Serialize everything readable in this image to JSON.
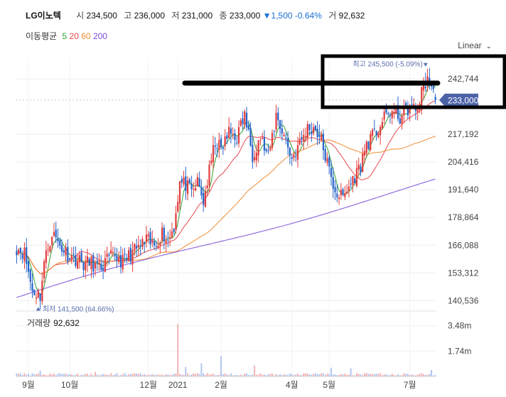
{
  "header": {
    "name": "LG이노텍",
    "open_label": "시",
    "open": "234,500",
    "high_label": "고",
    "high": "236,000",
    "low_label": "저",
    "low": "231,000",
    "close_label": "종",
    "close": "233,000",
    "change": "▼1,500 -0.64%",
    "volume_label": "거",
    "volume": "92,632"
  },
  "ma_legend": {
    "title": "이동평균",
    "periods": [
      {
        "label": "5",
        "color": "#2ca02c"
      },
      {
        "label": "20",
        "color": "#e8464a"
      },
      {
        "label": "60",
        "color": "#f08c32"
      },
      {
        "label": "200",
        "color": "#7b4fd9"
      }
    ]
  },
  "scale_selector": {
    "label": "Linear"
  },
  "price_badge": "233,000",
  "annotations": {
    "max_label": "최고 245,500 (-5.09%)",
    "min_label": "최저 141,500 (64.66%)"
  },
  "volume_panel": {
    "title": "거래량",
    "value": "92,632"
  },
  "colors": {
    "up": "#e23b3b",
    "down": "#2563c8",
    "badge": "#4c63a8",
    "annotation": "#5a6fae"
  },
  "chart_data": {
    "type": "candlestick",
    "price_ticks": [
      "242,744",
      "217,192",
      "204,416",
      "191,640",
      "178,864",
      "166,088",
      "153,312",
      "140,536"
    ],
    "price_tick_values": [
      242744,
      217192,
      204416,
      191640,
      178864,
      166088,
      153312,
      140536
    ],
    "volume_ticks": [
      "3.48m",
      "1.74m"
    ],
    "volume_tick_values": [
      3480000,
      1740000
    ],
    "x_ticks": [
      "9월",
      "10월",
      "12월",
      "2021",
      "2월",
      "4월",
      "5월",
      "7월"
    ],
    "x_tick_positions": [
      6,
      27,
      67,
      82,
      104,
      140,
      159,
      200
    ],
    "n_sessions": 214,
    "ylim": [
      139000,
      249000
    ],
    "volume_max": 4100000,
    "anchors": [
      [
        0,
        165000
      ],
      [
        4,
        162500
      ],
      [
        8,
        145000
      ],
      [
        12,
        143000
      ],
      [
        14,
        158000
      ],
      [
        18,
        172000
      ],
      [
        22,
        166000
      ],
      [
        26,
        162000
      ],
      [
        30,
        160000
      ],
      [
        34,
        157500
      ],
      [
        38,
        158000
      ],
      [
        42,
        155000
      ],
      [
        46,
        159000
      ],
      [
        50,
        161500
      ],
      [
        54,
        158500
      ],
      [
        58,
        162000
      ],
      [
        62,
        165000
      ],
      [
        66,
        168000
      ],
      [
        70,
        166000
      ],
      [
        74,
        172000
      ],
      [
        77,
        168000
      ],
      [
        80,
        175000
      ],
      [
        83,
        195000
      ],
      [
        86,
        194000
      ],
      [
        89,
        190000
      ],
      [
        92,
        195000
      ],
      [
        95,
        186000
      ],
      [
        98,
        200000
      ],
      [
        101,
        214000
      ],
      [
        104,
        210000
      ],
      [
        108,
        218000
      ],
      [
        112,
        216000
      ],
      [
        116,
        226000
      ],
      [
        120,
        208000
      ],
      [
        124,
        216000
      ],
      [
        128,
        206000
      ],
      [
        132,
        226000
      ],
      [
        136,
        217000
      ],
      [
        140,
        206000
      ],
      [
        144,
        213000
      ],
      [
        148,
        220000
      ],
      [
        152,
        220000
      ],
      [
        155,
        214000
      ],
      [
        158,
        204000
      ],
      [
        160,
        196000
      ],
      [
        163,
        190000
      ],
      [
        166,
        188000
      ],
      [
        169,
        193000
      ],
      [
        172,
        198000
      ],
      [
        175,
        203000
      ],
      [
        178,
        213000
      ],
      [
        182,
        217000
      ],
      [
        186,
        223000
      ],
      [
        190,
        228000
      ],
      [
        195,
        225000
      ],
      [
        200,
        230000
      ],
      [
        203,
        228000
      ],
      [
        206,
        236000
      ],
      [
        209,
        243500
      ],
      [
        213,
        233000
      ]
    ],
    "max_point": {
      "session": 208,
      "value": 245500
    },
    "min_point": {
      "session": 11,
      "value": 141500
    },
    "last": {
      "open": 234500,
      "high": 236000,
      "low": 231000,
      "close": 233000,
      "volume": 92632
    },
    "volume_spikes": [
      [
        82,
        3600000
      ],
      [
        104,
        1400000
      ],
      [
        86,
        650000
      ],
      [
        94,
        900000
      ],
      [
        121,
        750000
      ],
      [
        160,
        600000
      ],
      [
        170,
        550000
      ],
      [
        211,
        450000
      ],
      [
        12,
        400000
      ],
      [
        40,
        300000
      ]
    ],
    "moving_averages": [
      5,
      20,
      60,
      200
    ]
  }
}
